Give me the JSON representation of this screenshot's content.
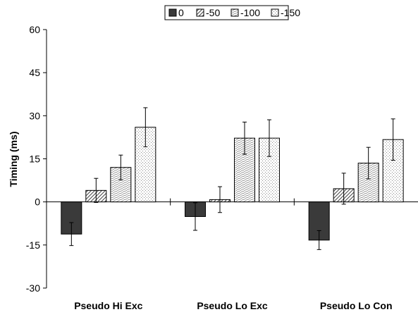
{
  "chart_data": {
    "type": "bar",
    "title": "",
    "xlabel": "",
    "ylabel": "Timing (ms)",
    "ylim": [
      -30,
      60
    ],
    "yticks": [
      -30,
      -15,
      0,
      15,
      30,
      45,
      60
    ],
    "categories": [
      "Pseudo Hi Exc",
      "Pseudo Lo Exc",
      "Pseudo Lo Con"
    ],
    "legend_position": "top-center",
    "grid": false,
    "series": [
      {
        "name": "0",
        "pattern": "solid-dark",
        "values": [
          -11.2,
          -5.1,
          -13.3
        ],
        "errors": [
          4.0,
          4.8,
          3.3
        ]
      },
      {
        "name": "-50",
        "pattern": "diagonal",
        "values": [
          4.0,
          0.8,
          4.6
        ],
        "errors": [
          4.2,
          4.5,
          5.4
        ]
      },
      {
        "name": "-100",
        "pattern": "dense-lines",
        "values": [
          12.0,
          22.2,
          13.5
        ],
        "errors": [
          4.3,
          5.6,
          5.5
        ]
      },
      {
        "name": "-150",
        "pattern": "dots",
        "values": [
          26.0,
          22.2,
          21.7
        ],
        "errors": [
          6.8,
          6.4,
          7.2
        ]
      }
    ]
  },
  "colors": {
    "solid": "#3a3a3a",
    "hatch": "#555555",
    "axis": "#000000"
  }
}
